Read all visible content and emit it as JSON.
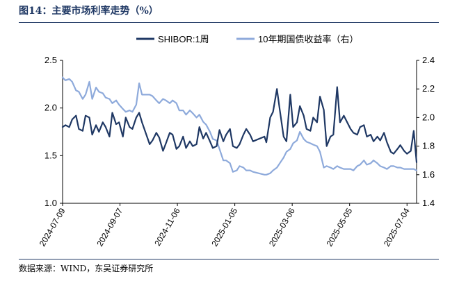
{
  "header": {
    "title": "图14：主要市场利率走势（%）"
  },
  "footer": {
    "source": "数据来源：WIND，东吴证券研究所"
  },
  "chart_data": {
    "type": "line",
    "title": "图14：主要市场利率走势（%）",
    "legend_position": "top-center",
    "x_ticks": [
      "2024-07-09",
      "2024-09-07",
      "2024-11-06",
      "2025-01-05",
      "2025-03-06",
      "2025-05-05",
      "2025-07-04"
    ],
    "x_range": [
      "2024-07-09",
      "2025-07-14"
    ],
    "ylim_left": [
      1.0,
      2.5
    ],
    "yticks_left": [
      "1.0",
      "1.5",
      "2.0",
      "2.5"
    ],
    "ylim_right": [
      1.4,
      2.4
    ],
    "yticks_right": [
      "1.4",
      "1.6",
      "1.8",
      "2.0",
      "2.2",
      "2.4"
    ],
    "series": [
      {
        "name": "SHIBOR:1周",
        "axis": "left",
        "color": "#1f3864",
        "x": [
          "2024-07-09",
          "2024-07-12",
          "2024-07-16",
          "2024-07-19",
          "2024-07-23",
          "2024-07-26",
          "2024-07-30",
          "2024-08-02",
          "2024-08-06",
          "2024-08-09",
          "2024-08-13",
          "2024-08-16",
          "2024-08-20",
          "2024-08-23",
          "2024-08-27",
          "2024-08-30",
          "2024-09-03",
          "2024-09-06",
          "2024-09-10",
          "2024-09-13",
          "2024-09-17",
          "2024-09-20",
          "2024-09-24",
          "2024-09-27",
          "2024-09-30",
          "2024-10-08",
          "2024-10-11",
          "2024-10-15",
          "2024-10-18",
          "2024-10-22",
          "2024-10-25",
          "2024-10-29",
          "2024-11-01",
          "2024-11-05",
          "2024-11-08",
          "2024-11-12",
          "2024-11-15",
          "2024-11-19",
          "2024-11-22",
          "2024-11-26",
          "2024-11-29",
          "2024-12-03",
          "2024-12-06",
          "2024-12-10",
          "2024-12-13",
          "2024-12-17",
          "2024-12-20",
          "2024-12-24",
          "2024-12-27",
          "2024-12-31",
          "2025-01-03",
          "2025-01-07",
          "2025-01-10",
          "2025-01-14",
          "2025-01-17",
          "2025-01-21",
          "2025-01-24",
          "2025-02-05",
          "2025-02-07",
          "2025-02-11",
          "2025-02-14",
          "2025-02-18",
          "2025-02-21",
          "2025-02-25",
          "2025-02-28",
          "2025-03-04",
          "2025-03-07",
          "2025-03-11",
          "2025-03-14",
          "2025-03-18",
          "2025-03-21",
          "2025-03-25",
          "2025-03-28",
          "2025-04-01",
          "2025-04-04",
          "2025-04-08",
          "2025-04-11",
          "2025-04-15",
          "2025-04-18",
          "2025-04-22",
          "2025-04-25",
          "2025-04-29",
          "2025-05-06",
          "2025-05-09",
          "2025-05-13",
          "2025-05-16",
          "2025-05-20",
          "2025-05-23",
          "2025-05-27",
          "2025-05-30",
          "2025-06-03",
          "2025-06-06",
          "2025-06-10",
          "2025-06-13",
          "2025-06-17",
          "2025-06-20",
          "2025-06-24",
          "2025-06-27",
          "2025-07-01",
          "2025-07-04",
          "2025-07-08",
          "2025-07-11",
          "2025-07-14"
        ],
        "values": [
          1.8,
          1.82,
          1.8,
          1.88,
          1.92,
          1.78,
          1.76,
          1.92,
          1.9,
          1.72,
          1.82,
          1.75,
          1.85,
          1.8,
          1.7,
          1.95,
          1.83,
          1.85,
          1.7,
          1.9,
          1.8,
          1.78,
          1.9,
          1.95,
          1.85,
          1.62,
          1.66,
          1.74,
          1.69,
          1.55,
          1.63,
          1.74,
          1.72,
          1.57,
          1.6,
          1.7,
          1.58,
          1.65,
          1.6,
          1.62,
          1.8,
          1.68,
          1.74,
          1.65,
          1.58,
          1.6,
          1.77,
          1.65,
          1.72,
          1.78,
          1.6,
          1.58,
          1.62,
          1.72,
          1.78,
          1.72,
          1.65,
          1.7,
          1.64,
          1.9,
          1.96,
          2.2,
          1.98,
          1.7,
          1.65,
          2.14,
          1.8,
          1.85,
          2.02,
          1.92,
          1.78,
          1.76,
          1.9,
          1.85,
          2.12,
          1.98,
          1.6,
          1.7,
          1.72,
          2.22,
          1.85,
          1.92,
          1.78,
          1.74,
          1.72,
          1.8,
          1.82,
          1.7,
          1.72,
          1.65,
          1.7,
          1.66,
          1.74,
          1.64,
          1.54,
          1.52,
          1.57,
          1.61,
          1.55,
          1.52,
          1.55,
          1.76,
          1.43
        ]
      },
      {
        "name": "10年期国债收益率（右）",
        "axis": "right",
        "color": "#8eaadb",
        "x": [
          "2024-07-09",
          "2024-07-12",
          "2024-07-16",
          "2024-07-19",
          "2024-07-23",
          "2024-07-26",
          "2024-07-30",
          "2024-08-02",
          "2024-08-06",
          "2024-08-09",
          "2024-08-13",
          "2024-08-16",
          "2024-08-20",
          "2024-08-23",
          "2024-08-27",
          "2024-08-30",
          "2024-09-03",
          "2024-09-06",
          "2024-09-10",
          "2024-09-13",
          "2024-09-17",
          "2024-09-20",
          "2024-09-24",
          "2024-09-27",
          "2024-09-30",
          "2024-10-08",
          "2024-10-11",
          "2024-10-15",
          "2024-10-18",
          "2024-10-22",
          "2024-10-25",
          "2024-10-29",
          "2024-11-01",
          "2024-11-05",
          "2024-11-08",
          "2024-11-12",
          "2024-11-15",
          "2024-11-19",
          "2024-11-22",
          "2024-11-26",
          "2024-11-29",
          "2024-12-03",
          "2024-12-06",
          "2024-12-10",
          "2024-12-13",
          "2024-12-17",
          "2024-12-20",
          "2024-12-24",
          "2024-12-27",
          "2024-12-31",
          "2025-01-03",
          "2025-01-07",
          "2025-01-10",
          "2025-01-14",
          "2025-01-17",
          "2025-01-21",
          "2025-01-24",
          "2025-02-05",
          "2025-02-07",
          "2025-02-11",
          "2025-02-14",
          "2025-02-18",
          "2025-02-21",
          "2025-02-25",
          "2025-02-28",
          "2025-03-04",
          "2025-03-07",
          "2025-03-11",
          "2025-03-14",
          "2025-03-18",
          "2025-03-21",
          "2025-03-25",
          "2025-03-28",
          "2025-04-01",
          "2025-04-04",
          "2025-04-08",
          "2025-04-11",
          "2025-04-15",
          "2025-04-18",
          "2025-04-22",
          "2025-04-25",
          "2025-04-29",
          "2025-05-06",
          "2025-05-09",
          "2025-05-13",
          "2025-05-16",
          "2025-05-20",
          "2025-05-23",
          "2025-05-27",
          "2025-05-30",
          "2025-06-03",
          "2025-06-06",
          "2025-06-10",
          "2025-06-13",
          "2025-06-17",
          "2025-06-20",
          "2025-06-24",
          "2025-06-27",
          "2025-07-01",
          "2025-07-04",
          "2025-07-08",
          "2025-07-11",
          "2025-07-14"
        ],
        "values": [
          2.28,
          2.26,
          2.27,
          2.25,
          2.19,
          2.18,
          2.13,
          2.16,
          2.25,
          2.13,
          2.21,
          2.18,
          2.17,
          2.14,
          2.13,
          2.1,
          2.12,
          2.09,
          2.06,
          2.04,
          2.05,
          2.04,
          2.09,
          2.24,
          2.16,
          2.16,
          2.15,
          2.12,
          2.1,
          2.13,
          2.12,
          2.1,
          2.12,
          2.1,
          2.05,
          2.05,
          2.02,
          2.05,
          2.03,
          2.0,
          2.02,
          1.97,
          1.95,
          1.9,
          1.85,
          1.84,
          1.78,
          1.7,
          1.7,
          1.68,
          1.62,
          1.63,
          1.66,
          1.65,
          1.63,
          1.63,
          1.62,
          1.6,
          1.6,
          1.61,
          1.63,
          1.65,
          1.68,
          1.72,
          1.76,
          1.78,
          1.82,
          1.84,
          1.9,
          1.85,
          1.83,
          1.82,
          1.81,
          1.8,
          1.76,
          1.65,
          1.66,
          1.65,
          1.64,
          1.66,
          1.65,
          1.64,
          1.64,
          1.63,
          1.66,
          1.67,
          1.7,
          1.67,
          1.68,
          1.7,
          1.68,
          1.66,
          1.65,
          1.64,
          1.66,
          1.66,
          1.65,
          1.65,
          1.64,
          1.64,
          1.64,
          1.64,
          1.63
        ]
      }
    ]
  }
}
